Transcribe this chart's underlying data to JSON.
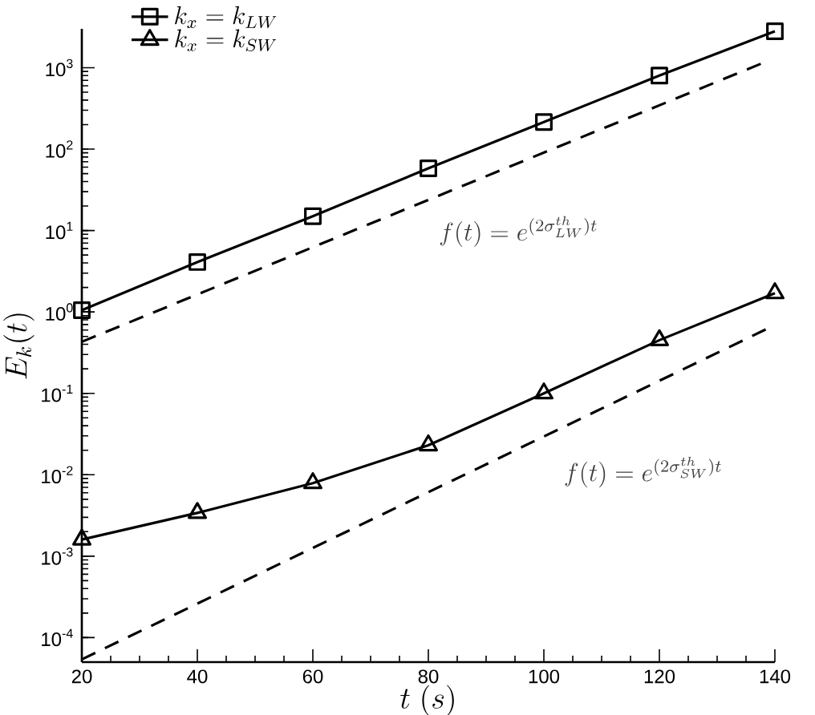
{
  "chart_data": {
    "type": "line",
    "xlabel": "t\\ (s)",
    "ylabel": "E_k(t)",
    "log": "y",
    "grid": false,
    "legend": "top left",
    "xlim": [
      20,
      140
    ],
    "xticks": [
      20,
      40,
      60,
      80,
      100,
      120,
      140
    ],
    "ylim": [
      5e-05,
      3000
    ],
    "yticks": [
      {
        "value": 0.0001,
        "label": "10$^{-4}$"
      },
      {
        "value": 0.001,
        "label": "10$^{-3}$"
      },
      {
        "value": 0.01,
        "label": "10$^{-2}$"
      },
      {
        "value": 0.1,
        "label": "10$^{-1}$"
      },
      {
        "value": 1,
        "label": "10$^{0}$"
      },
      {
        "value": 10,
        "label": "10$^{1}$"
      },
      {
        "value": 100,
        "label": "10$^{2}$"
      },
      {
        "value": 1000,
        "label": "10$^{3}$"
      }
    ],
    "series": [
      {
        "name": "k_x = k_{LW}",
        "color": "#000000",
        "marker": "square",
        "line_style": "solid",
        "x": [
          20,
          40,
          60,
          80,
          100,
          120,
          140
        ],
        "values": [
          1.05,
          4.1,
          15,
          58,
          215,
          800,
          2800
        ]
      },
      {
        "name": "k_x = k_{SW}",
        "color": "#000000",
        "marker": "triangle",
        "line_style": "solid",
        "x": [
          20,
          40,
          60,
          80,
          100,
          120,
          140
        ],
        "values": [
          0.0016,
          0.0034,
          0.0079,
          0.023,
          0.1,
          0.45,
          1.7
        ]
      },
      {
        "color": "#000000",
        "marker": "none",
        "line_style": "dashed",
        "x": [
          20,
          138
        ],
        "values": [
          0.43,
          1150
        ]
      },
      {
        "color": "#000000",
        "marker": "none",
        "line_style": "dashed",
        "x": [
          20,
          140
        ],
        "values": [
          5.4e-05,
          0.69
        ]
      }
    ],
    "annotations": [
      "f(t) = e^{(2\\sigma_{LW}^{th})t}",
      "f(t) = e^{(2\\sigma_{SW}^{th})t}"
    ]
  }
}
